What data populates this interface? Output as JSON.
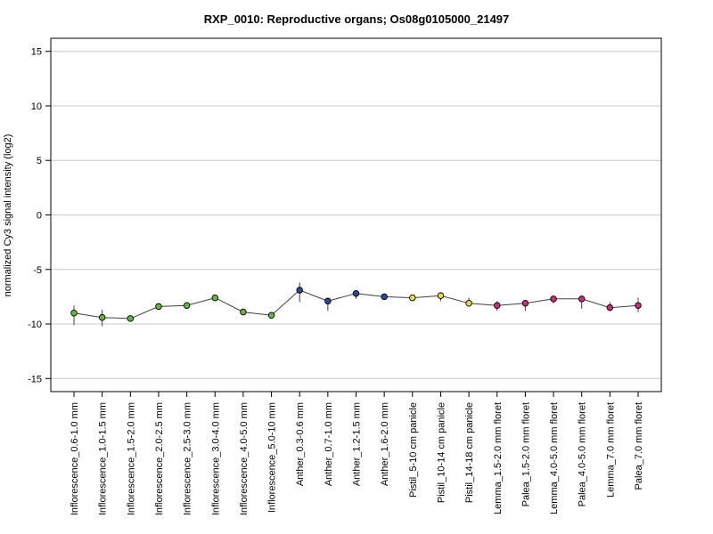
{
  "chart_data": {
    "type": "line",
    "title": "RXP_0010: Reproductive organs; Os08g0105000_21497",
    "xlabel": "",
    "ylabel": "normalized Cy3 signal intensity (log2)",
    "ylim": [
      -16.2,
      16.2
    ],
    "yticks": [
      -15,
      -10,
      -5,
      0,
      5,
      10,
      15
    ],
    "grid": "horizontal",
    "categories": [
      "Inflorescence_0.6-1.0 mm",
      "Inflorescence_1.0-1.5 mm",
      "Inflorescence_1.5-2.0 mm",
      "Inflorescence_2.0-2.5 mm",
      "Inflorescence_2.5-3.0 mm",
      "Inflorescence_3.0-4.0 mm",
      "Inflorescence_4.0-5.0 mm",
      "Inflorescence_5.0-10 mm",
      "Anther_0.3-0.6 mm",
      "Anther_0.7-1.0 mm",
      "Anther_1.2-1.5 mm",
      "Anther_1.6-2.0 mm",
      "Pistil_5-10 cm panicle",
      "Pistil_10-14 cm panicle",
      "Pistil_14-18 cm panicle",
      "Lemma_1.5-2.0 mm floret",
      "Palea_1.5-2.0 mm floret",
      "Lemma_4.0-5.0 mm floret",
      "Palea_4.0-5.0 mm floret",
      "Lemma_7.0 mm floret",
      "Palea_7.0 mm floret"
    ],
    "series": [
      {
        "values": [
          -9.0,
          -9.4,
          -9.5,
          -8.4,
          -8.3,
          -7.6,
          -8.9,
          -9.2,
          -6.9,
          -7.9,
          -7.2,
          -7.5,
          -7.6,
          -7.4,
          -8.1,
          -8.3,
          -8.1,
          -7.7,
          -7.7,
          -8.5,
          -8.3
        ],
        "err_low": [
          -10.1,
          -10.2,
          -9.6,
          -8.5,
          -8.4,
          -7.7,
          -9.1,
          -9.3,
          -8.0,
          -8.8,
          -7.7,
          -7.6,
          -7.7,
          -7.9,
          -8.4,
          -8.8,
          -8.8,
          -8.1,
          -8.6,
          -8.8,
          -8.9
        ],
        "err_high": [
          -8.3,
          -8.7,
          -9.3,
          -8.3,
          -8.2,
          -7.5,
          -8.7,
          -9.1,
          -6.2,
          -7.6,
          -7.0,
          -7.4,
          -7.5,
          -7.2,
          -7.6,
          -7.9,
          -7.8,
          -7.5,
          -7.4,
          -8.0,
          -7.6
        ],
        "colors": [
          "#5fba3c",
          "#5fba3c",
          "#5fba3c",
          "#5fba3c",
          "#5fba3c",
          "#5fba3c",
          "#5fba3c",
          "#5fba3c",
          "#2a4b9b",
          "#2a4b9b",
          "#2a4b9b",
          "#2a4b9b",
          "#e3d94a",
          "#e3d94a",
          "#e3d94a",
          "#cc2a7a",
          "#cc2a7a",
          "#cc2a7a",
          "#cc2a7a",
          "#cc2a7a",
          "#cc2a7a"
        ]
      }
    ]
  },
  "colors": {
    "line": "#404040",
    "grid": "#c8c8c8",
    "axis": "#000000",
    "error_bar": "#404040"
  }
}
